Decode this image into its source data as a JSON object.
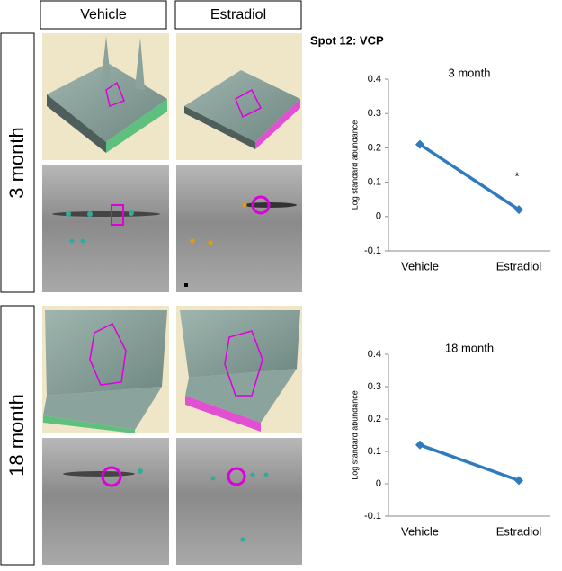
{
  "columns": [
    "Vehicle",
    "Estradiol"
  ],
  "rows": [
    "3 month",
    "18 month"
  ],
  "spot_title": "Spot 12: VCP",
  "chart_data": [
    {
      "type": "line",
      "title": "3 month",
      "y_label": "Log standard abundance",
      "categories": [
        "Vehicle",
        "Estradiol"
      ],
      "values": [
        0.21,
        0.02
      ],
      "color": "#2e7bbf",
      "annotation": "*",
      "ylim": [
        -0.1,
        0.4
      ],
      "yticks": [
        -0.1,
        0,
        0.1,
        0.2,
        0.3,
        0.4
      ]
    },
    {
      "type": "line",
      "title": "18 month",
      "y_label": "Log standard abundance",
      "categories": [
        "Vehicle",
        "Estradiol"
      ],
      "values": [
        0.12,
        0.01
      ],
      "color": "#2e7bbf",
      "ylim": [
        -0.1,
        0.4
      ],
      "yticks": [
        -0.1,
        0,
        0.1,
        0.2,
        0.3,
        0.4
      ]
    }
  ]
}
